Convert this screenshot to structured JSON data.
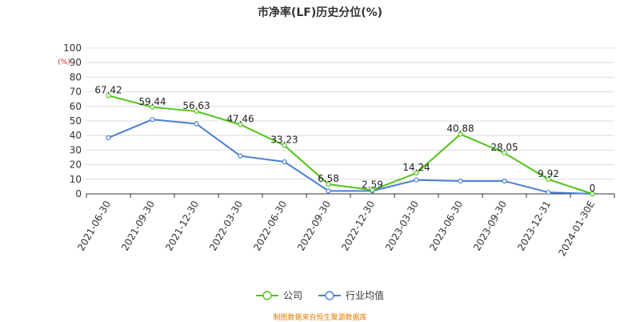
{
  "chart_data": {
    "type": "line",
    "title": "市净率(LF)历史分位(%)",
    "unit": "(%)",
    "categories": [
      "2021-06-30",
      "2021-09-30",
      "2021-12-30",
      "2022-03-30",
      "2022-06-30",
      "2022-09-30",
      "2022-12-30",
      "2023-03-30",
      "2023-06-30",
      "2023-09-30",
      "2023-12-31",
      "2024-01-30E"
    ],
    "series": [
      {
        "name": "公司",
        "color": "#52c41a",
        "labeled": true,
        "values": [
          67.42,
          59.44,
          56.63,
          47.46,
          33.23,
          6.58,
          2.59,
          14.24,
          40.88,
          28.05,
          9.92,
          0
        ]
      },
      {
        "name": "行业均值",
        "color": "#4a7fd4",
        "labeled": false,
        "values": [
          38.5,
          51,
          48,
          26,
          22,
          2,
          2,
          9.5,
          8.8,
          8.8,
          1,
          0
        ]
      }
    ],
    "y_ticks": [
      "0",
      "10",
      "20",
      "30",
      "40",
      "50",
      "60",
      "70",
      "80",
      "90",
      "100"
    ],
    "ylim": [
      0,
      100
    ],
    "grid": true,
    "legend_position": "bottom"
  },
  "source": "制图数据来自恒生聚源数据库"
}
